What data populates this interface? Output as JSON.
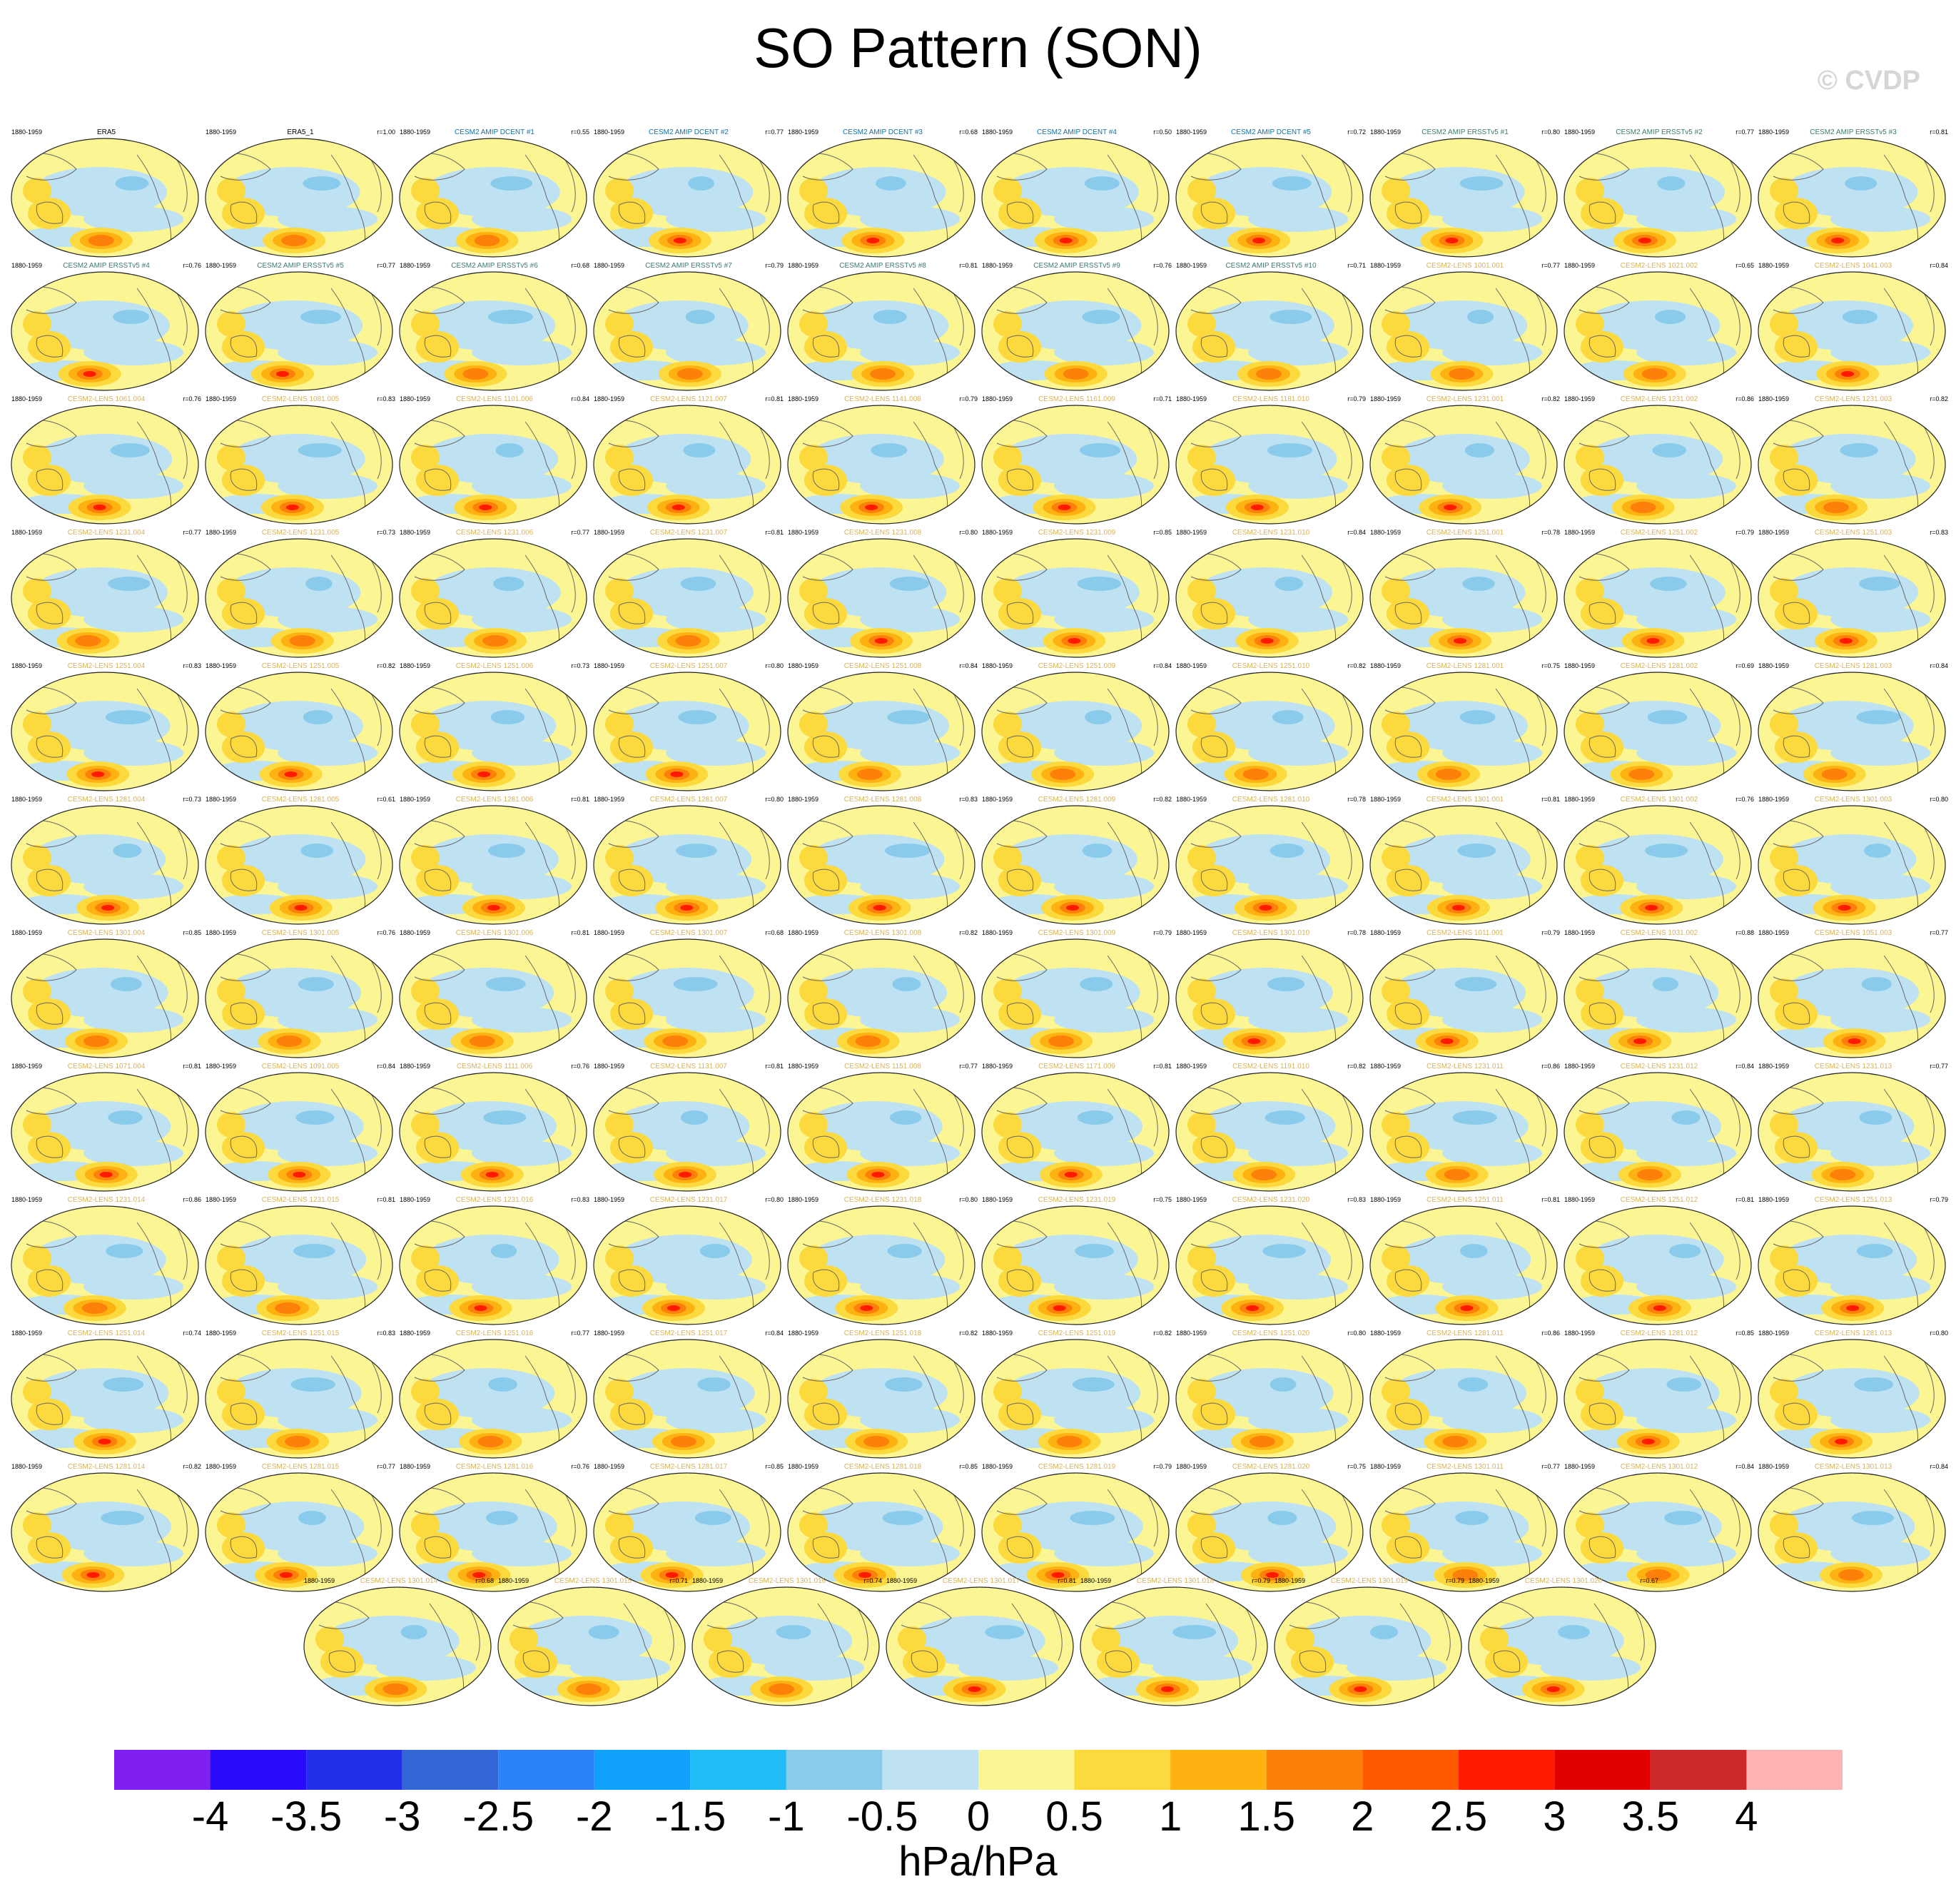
{
  "title": "SO Pattern (SON)",
  "copyright": "© CVDP",
  "period": "1880-1959",
  "colors": {
    "title_obs": "#000000",
    "title_dcent": "#1a6fa0",
    "title_ersst": "#3d7a70",
    "title_lens": "#d7b35a"
  },
  "panels": [
    {
      "title": "ERA5",
      "r": "",
      "group": "obs"
    },
    {
      "title": "ERA5_1",
      "r": "r=1.00",
      "group": "obs"
    },
    {
      "title": "CESM2 AMIP DCENT #1",
      "r": "r=0.55",
      "group": "dcent"
    },
    {
      "title": "CESM2 AMIP DCENT #2",
      "r": "r=0.77",
      "group": "dcent"
    },
    {
      "title": "CESM2 AMIP DCENT #3",
      "r": "r=0.68",
      "group": "dcent"
    },
    {
      "title": "CESM2 AMIP DCENT #4",
      "r": "r=0.50",
      "group": "dcent"
    },
    {
      "title": "CESM2 AMIP DCENT #5",
      "r": "r=0.72",
      "group": "dcent"
    },
    {
      "title": "CESM2 AMIP ERSSTv5 #1",
      "r": "r=0.80",
      "group": "ersst"
    },
    {
      "title": "CESM2 AMIP ERSSTv5 #2",
      "r": "r=0.77",
      "group": "ersst"
    },
    {
      "title": "CESM2 AMIP ERSSTv5 #3",
      "r": "r=0.81",
      "group": "ersst"
    },
    {
      "title": "CESM2 AMIP ERSSTv5 #4",
      "r": "r=0.76",
      "group": "ersst"
    },
    {
      "title": "CESM2 AMIP ERSSTv5 #5",
      "r": "r=0.77",
      "group": "ersst"
    },
    {
      "title": "CESM2 AMIP ERSSTv5 #6",
      "r": "r=0.68",
      "group": "ersst"
    },
    {
      "title": "CESM2 AMIP ERSSTv5 #7",
      "r": "r=0.79",
      "group": "ersst"
    },
    {
      "title": "CESM2 AMIP ERSSTv5 #8",
      "r": "r=0.81",
      "group": "ersst"
    },
    {
      "title": "CESM2 AMIP ERSSTv5 #9",
      "r": "r=0.76",
      "group": "ersst"
    },
    {
      "title": "CESM2 AMIP ERSSTv5 #10",
      "r": "r=0.71",
      "group": "ersst"
    },
    {
      "title": "CESM2-LENS 1001.001",
      "r": "r=0.77",
      "group": "lens"
    },
    {
      "title": "CESM2-LENS 1021.002",
      "r": "r=0.65",
      "group": "lens"
    },
    {
      "title": "CESM2-LENS 1041.003",
      "r": "r=0.84",
      "group": "lens"
    },
    {
      "title": "CESM2-LENS 1061.004",
      "r": "r=0.76",
      "group": "lens"
    },
    {
      "title": "CESM2-LENS 1081.005",
      "r": "r=0.83",
      "group": "lens"
    },
    {
      "title": "CESM2-LENS 1101.006",
      "r": "r=0.84",
      "group": "lens"
    },
    {
      "title": "CESM2-LENS 1121.007",
      "r": "r=0.81",
      "group": "lens"
    },
    {
      "title": "CESM2-LENS 1141.008",
      "r": "r=0.79",
      "group": "lens"
    },
    {
      "title": "CESM2-LENS 1161.009",
      "r": "r=0.71",
      "group": "lens"
    },
    {
      "title": "CESM2-LENS 1181.010",
      "r": "r=0.79",
      "group": "lens"
    },
    {
      "title": "CESM2-LENS 1231.001",
      "r": "r=0.82",
      "group": "lens"
    },
    {
      "title": "CESM2-LENS 1231.002",
      "r": "r=0.86",
      "group": "lens"
    },
    {
      "title": "CESM2-LENS 1231.003",
      "r": "r=0.82",
      "group": "lens"
    },
    {
      "title": "CESM2-LENS 1231.004",
      "r": "r=0.77",
      "group": "lens"
    },
    {
      "title": "CESM2-LENS 1231.005",
      "r": "r=0.73",
      "group": "lens"
    },
    {
      "title": "CESM2-LENS 1231.006",
      "r": "r=0.77",
      "group": "lens"
    },
    {
      "title": "CESM2-LENS 1231.007",
      "r": "r=0.81",
      "group": "lens"
    },
    {
      "title": "CESM2-LENS 1231.008",
      "r": "r=0.80",
      "group": "lens"
    },
    {
      "title": "CESM2-LENS 1231.009",
      "r": "r=0.85",
      "group": "lens"
    },
    {
      "title": "CESM2-LENS 1231.010",
      "r": "r=0.84",
      "group": "lens"
    },
    {
      "title": "CESM2-LENS 1251.001",
      "r": "r=0.78",
      "group": "lens"
    },
    {
      "title": "CESM2-LENS 1251.002",
      "r": "r=0.79",
      "group": "lens"
    },
    {
      "title": "CESM2-LENS 1251.003",
      "r": "r=0.83",
      "group": "lens"
    },
    {
      "title": "CESM2-LENS 1251.004",
      "r": "r=0.83",
      "group": "lens"
    },
    {
      "title": "CESM2-LENS 1251.005",
      "r": "r=0.82",
      "group": "lens"
    },
    {
      "title": "CESM2-LENS 1251.006",
      "r": "r=0.73",
      "group": "lens"
    },
    {
      "title": "CESM2-LENS 1251.007",
      "r": "r=0.80",
      "group": "lens"
    },
    {
      "title": "CESM2-LENS 1251.008",
      "r": "r=0.84",
      "group": "lens"
    },
    {
      "title": "CESM2-LENS 1251.009",
      "r": "r=0.84",
      "group": "lens"
    },
    {
      "title": "CESM2-LENS 1251.010",
      "r": "r=0.82",
      "group": "lens"
    },
    {
      "title": "CESM2-LENS 1281.001",
      "r": "r=0.75",
      "group": "lens"
    },
    {
      "title": "CESM2-LENS 1281.002",
      "r": "r=0.69",
      "group": "lens"
    },
    {
      "title": "CESM2-LENS 1281.003",
      "r": "r=0.84",
      "group": "lens"
    },
    {
      "title": "CESM2-LENS 1281.004",
      "r": "r=0.73",
      "group": "lens"
    },
    {
      "title": "CESM2-LENS 1281.005",
      "r": "r=0.61",
      "group": "lens"
    },
    {
      "title": "CESM2-LENS 1281.006",
      "r": "r=0.81",
      "group": "lens"
    },
    {
      "title": "CESM2-LENS 1281.007",
      "r": "r=0.80",
      "group": "lens"
    },
    {
      "title": "CESM2-LENS 1281.008",
      "r": "r=0.83",
      "group": "lens"
    },
    {
      "title": "CESM2-LENS 1281.009",
      "r": "r=0.82",
      "group": "lens"
    },
    {
      "title": "CESM2-LENS 1281.010",
      "r": "r=0.78",
      "group": "lens"
    },
    {
      "title": "CESM2-LENS 1301.001",
      "r": "r=0.81",
      "group": "lens"
    },
    {
      "title": "CESM2-LENS 1301.002",
      "r": "r=0.76",
      "group": "lens"
    },
    {
      "title": "CESM2-LENS 1301.003",
      "r": "r=0.80",
      "group": "lens"
    },
    {
      "title": "CESM2-LENS 1301.004",
      "r": "r=0.85",
      "group": "lens"
    },
    {
      "title": "CESM2-LENS 1301.005",
      "r": "r=0.76",
      "group": "lens"
    },
    {
      "title": "CESM2-LENS 1301.006",
      "r": "r=0.81",
      "group": "lens"
    },
    {
      "title": "CESM2-LENS 1301.007",
      "r": "r=0.68",
      "group": "lens"
    },
    {
      "title": "CESM2-LENS 1301.008",
      "r": "r=0.82",
      "group": "lens"
    },
    {
      "title": "CESM2-LENS 1301.009",
      "r": "r=0.79",
      "group": "lens"
    },
    {
      "title": "CESM2-LENS 1301.010",
      "r": "r=0.78",
      "group": "lens"
    },
    {
      "title": "CESM2-LENS 1011.001",
      "r": "r=0.79",
      "group": "lens"
    },
    {
      "title": "CESM2-LENS 1031.002",
      "r": "r=0.88",
      "group": "lens"
    },
    {
      "title": "CESM2-LENS 1051.003",
      "r": "r=0.77",
      "group": "lens"
    },
    {
      "title": "CESM2-LENS 1071.004",
      "r": "r=0.81",
      "group": "lens"
    },
    {
      "title": "CESM2-LENS 1091.005",
      "r": "r=0.84",
      "group": "lens"
    },
    {
      "title": "CESM2-LENS 1111.006",
      "r": "r=0.76",
      "group": "lens"
    },
    {
      "title": "CESM2-LENS 1131.007",
      "r": "r=0.81",
      "group": "lens"
    },
    {
      "title": "CESM2-LENS 1151.008",
      "r": "r=0.77",
      "group": "lens"
    },
    {
      "title": "CESM2-LENS 1171.009",
      "r": "r=0.81",
      "group": "lens"
    },
    {
      "title": "CESM2-LENS 1191.010",
      "r": "r=0.82",
      "group": "lens"
    },
    {
      "title": "CESM2-LENS 1231.011",
      "r": "r=0.86",
      "group": "lens"
    },
    {
      "title": "CESM2-LENS 1231.012",
      "r": "r=0.84",
      "group": "lens"
    },
    {
      "title": "CESM2-LENS 1231.013",
      "r": "r=0.77",
      "group": "lens"
    },
    {
      "title": "CESM2-LENS 1231.014",
      "r": "r=0.86",
      "group": "lens"
    },
    {
      "title": "CESM2-LENS 1231.015",
      "r": "r=0.81",
      "group": "lens"
    },
    {
      "title": "CESM2-LENS 1231.016",
      "r": "r=0.83",
      "group": "lens"
    },
    {
      "title": "CESM2-LENS 1231.017",
      "r": "r=0.80",
      "group": "lens"
    },
    {
      "title": "CESM2-LENS 1231.018",
      "r": "r=0.80",
      "group": "lens"
    },
    {
      "title": "CESM2-LENS 1231.019",
      "r": "r=0.75",
      "group": "lens"
    },
    {
      "title": "CESM2-LENS 1231.020",
      "r": "r=0.83",
      "group": "lens"
    },
    {
      "title": "CESM2-LENS 1251.011",
      "r": "r=0.81",
      "group": "lens"
    },
    {
      "title": "CESM2-LENS 1251.012",
      "r": "r=0.81",
      "group": "lens"
    },
    {
      "title": "CESM2-LENS 1251.013",
      "r": "r=0.79",
      "group": "lens"
    },
    {
      "title": "CESM2-LENS 1251.014",
      "r": "r=0.74",
      "group": "lens"
    },
    {
      "title": "CESM2-LENS 1251.015",
      "r": "r=0.83",
      "group": "lens"
    },
    {
      "title": "CESM2-LENS 1251.016",
      "r": "r=0.77",
      "group": "lens"
    },
    {
      "title": "CESM2-LENS 1251.017",
      "r": "r=0.84",
      "group": "lens"
    },
    {
      "title": "CESM2-LENS 1251.018",
      "r": "r=0.82",
      "group": "lens"
    },
    {
      "title": "CESM2-LENS 1251.019",
      "r": "r=0.82",
      "group": "lens"
    },
    {
      "title": "CESM2-LENS 1251.020",
      "r": "r=0.80",
      "group": "lens"
    },
    {
      "title": "CESM2-LENS 1281.011",
      "r": "r=0.86",
      "group": "lens"
    },
    {
      "title": "CESM2-LENS 1281.012",
      "r": "r=0.85",
      "group": "lens"
    },
    {
      "title": "CESM2-LENS 1281.013",
      "r": "r=0.80",
      "group": "lens"
    },
    {
      "title": "CESM2-LENS 1281.014",
      "r": "r=0.82",
      "group": "lens"
    },
    {
      "title": "CESM2-LENS 1281.015",
      "r": "r=0.77",
      "group": "lens"
    },
    {
      "title": "CESM2-LENS 1281.016",
      "r": "r=0.76",
      "group": "lens"
    },
    {
      "title": "CESM2-LENS 1281.017",
      "r": "r=0.85",
      "group": "lens"
    },
    {
      "title": "CESM2-LENS 1281.018",
      "r": "r=0.85",
      "group": "lens"
    },
    {
      "title": "CESM2-LENS 1281.019",
      "r": "r=0.79",
      "group": "lens"
    },
    {
      "title": "CESM2-LENS 1281.020",
      "r": "r=0.75",
      "group": "lens"
    },
    {
      "title": "CESM2-LENS 1301.011",
      "r": "r=0.77",
      "group": "lens"
    },
    {
      "title": "CESM2-LENS 1301.012",
      "r": "r=0.84",
      "group": "lens"
    },
    {
      "title": "CESM2-LENS 1301.013",
      "r": "r=0.84",
      "group": "lens"
    },
    {
      "title": "CESM2-LENS 1301.014",
      "r": "r=0.68",
      "group": "lens"
    },
    {
      "title": "CESM2-LENS 1301.015",
      "r": "r=0.71",
      "group": "lens"
    },
    {
      "title": "CESM2-LENS 1301.016",
      "r": "r=0.74",
      "group": "lens"
    },
    {
      "title": "CESM2-LENS 1301.017",
      "r": "r=0.81",
      "group": "lens"
    },
    {
      "title": "CESM2-LENS 1301.018",
      "r": "r=0.79",
      "group": "lens"
    },
    {
      "title": "CESM2-LENS 1301.019",
      "r": "r=0.79",
      "group": "lens"
    },
    {
      "title": "CESM2-LENS 1301.020",
      "r": "r=0.67",
      "group": "lens"
    }
  ],
  "colorbar": {
    "colors": [
      "#7f1ff0",
      "#2a0cfb",
      "#2230e8",
      "#3466d8",
      "#2a82f7",
      "#11a1fc",
      "#22bdf8",
      "#8acbec",
      "#bfe2f3",
      "#fbf593",
      "#fcd93c",
      "#feb211",
      "#fd800a",
      "#ff5a00",
      "#ff1a00",
      "#e10000",
      "#cc2a2a",
      "#ffb3b3"
    ],
    "ticks": [
      "-4",
      "-3.5",
      "-3",
      "-2.5",
      "-2",
      "-1.5",
      "-1",
      "-0.5",
      "0",
      "0.5",
      "1",
      "1.5",
      "2",
      "2.5",
      "3",
      "3.5",
      "4"
    ],
    "units": "hPa/hPa"
  },
  "chart_data": {
    "type": "heatmap",
    "title": "SO Pattern (SON)",
    "panel_count": 117,
    "period": "1880-1959",
    "colorbar_levels": [
      -4,
      -3.5,
      -3,
      -2.5,
      -2,
      -1.5,
      -1,
      -0.5,
      0,
      0.5,
      1,
      1.5,
      2,
      2.5,
      3,
      3.5,
      4
    ],
    "units": "hPa/hPa",
    "reference": "ERA5"
  }
}
